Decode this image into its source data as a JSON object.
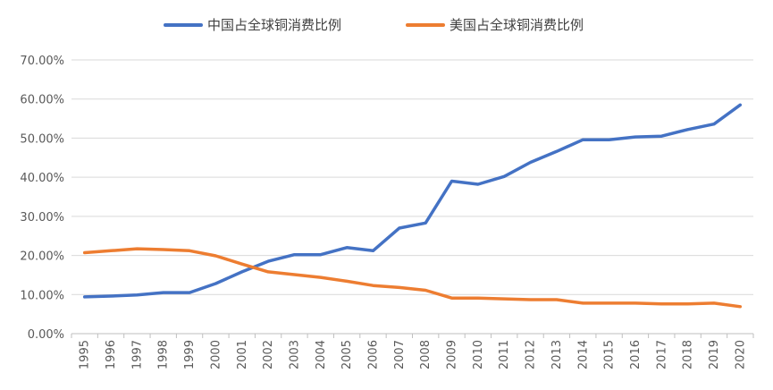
{
  "chart_data": {
    "type": "line",
    "title": "",
    "xlabel": "",
    "ylabel": "",
    "categories": [
      "1995",
      "1996",
      "1997",
      "1998",
      "1999",
      "2000",
      "2001",
      "2002",
      "2003",
      "2004",
      "2005",
      "2006",
      "2007",
      "2008",
      "2009",
      "2010",
      "2011",
      "2012",
      "2013",
      "2014",
      "2015",
      "2016",
      "2017",
      "2018",
      "2019",
      "2020"
    ],
    "series": [
      {
        "name": "中国占全球铜消费比例",
        "color": "#4472C4",
        "values": [
          9.4,
          9.6,
          9.9,
          10.5,
          10.5,
          12.8,
          15.8,
          18.5,
          20.2,
          20.2,
          22.0,
          21.2,
          27.0,
          28.3,
          39.0,
          38.2,
          40.2,
          43.8,
          46.6,
          49.6,
          49.6,
          50.3,
          50.5,
          52.2,
          53.6,
          58.5
        ]
      },
      {
        "name": "美国占全球铜消费比例",
        "color": "#ED7D31",
        "values": [
          20.7,
          21.2,
          21.7,
          21.5,
          21.2,
          19.9,
          17.8,
          15.8,
          15.1,
          14.4,
          13.4,
          12.3,
          11.8,
          11.1,
          9.1,
          9.1,
          8.9,
          8.7,
          8.7,
          7.8,
          7.8,
          7.8,
          7.6,
          7.6,
          7.8,
          6.9
        ]
      }
    ],
    "ylim": [
      0,
      70
    ],
    "yticks": [
      0,
      10,
      20,
      30,
      40,
      50,
      60,
      70
    ],
    "ytick_labels": [
      "0.00%",
      "10.00%",
      "20.00%",
      "30.00%",
      "40.00%",
      "50.00%",
      "60.00%",
      "70.00%"
    ],
    "grid": true,
    "gridline_color": "#D9D9D9",
    "legend_position": "top"
  }
}
